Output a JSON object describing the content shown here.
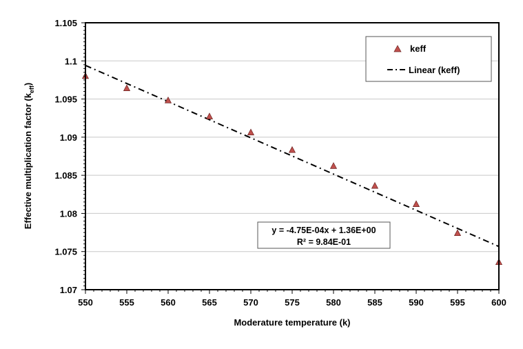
{
  "chart_data": {
    "type": "scatter",
    "title": "",
    "xlabel": "Moderature temperature (k)",
    "ylabel": {
      "main": "Effective multiplication factor (k",
      "sub": "eff",
      "end": ")"
    },
    "xlim": [
      550,
      600
    ],
    "ylim": [
      1.07,
      1.105
    ],
    "xticks": [
      "550",
      "555",
      "560",
      "565",
      "570",
      "575",
      "580",
      "585",
      "590",
      "595",
      "600"
    ],
    "yticks": [
      "1.07",
      "1.075",
      "1.08",
      "1.085",
      "1.09",
      "1.095",
      "1.1",
      "1.105"
    ],
    "grid": "horizontal",
    "series": [
      {
        "name": "keff",
        "marker": "triangle",
        "color": "#c0504d",
        "x": [
          550,
          555,
          560,
          565,
          570,
          575,
          580,
          585,
          590,
          595,
          600
        ],
        "y": [
          1.098,
          1.0964,
          1.0948,
          1.0927,
          1.0906,
          1.0883,
          1.0862,
          1.0836,
          1.0812,
          1.0774,
          1.0736
        ]
      }
    ],
    "trendline": {
      "name": "Linear (keff)",
      "slope": -0.000475,
      "intercept": 1.36066,
      "style": "dash-dot",
      "color": "#000000"
    },
    "equation": {
      "line1": "y = -4.75E-04x + 1.36E+00",
      "line2": "R² = 9.84E-01"
    },
    "legend": {
      "placement": "top-right",
      "entries": [
        "keff",
        "Linear (keff)"
      ]
    }
  }
}
